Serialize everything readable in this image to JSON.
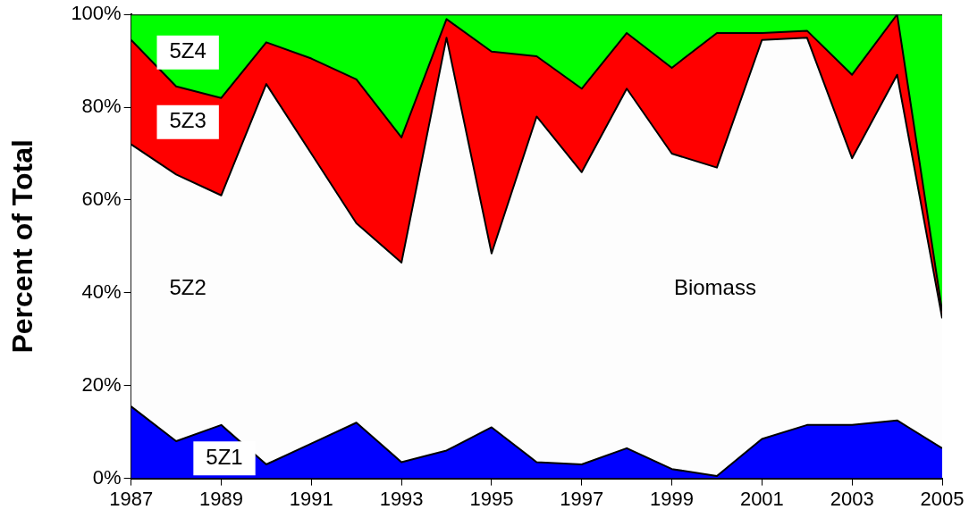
{
  "chart_data": {
    "type": "area",
    "stacked": true,
    "ylabel": "Percent of Total",
    "legend": false,
    "grid": false,
    "marker": "none",
    "x": [
      1987,
      1988,
      1989,
      1990,
      1991,
      1992,
      1993,
      1994,
      1995,
      1996,
      1997,
      1998,
      1999,
      2000,
      2001,
      2002,
      2003,
      2004,
      2005
    ],
    "xlim": [
      1987,
      2005
    ],
    "xticks": [
      1987,
      1989,
      1991,
      1993,
      1995,
      1997,
      1999,
      2001,
      2003,
      2005
    ],
    "ylim": [
      0,
      100
    ],
    "yticks": [
      {
        "value": 0,
        "label": "0%"
      },
      {
        "value": 20,
        "label": "20%"
      },
      {
        "value": 40,
        "label": "40%"
      },
      {
        "value": 60,
        "label": "60%"
      },
      {
        "value": 80,
        "label": "80%"
      },
      {
        "value": 100,
        "label": "100%"
      }
    ],
    "series": [
      {
        "name": "5Z1",
        "color": "#0000ff",
        "values": [
          15.5,
          8,
          11.5,
          3,
          7.5,
          12,
          3.5,
          6,
          11,
          3.5,
          3,
          6.5,
          2,
          0.5,
          8.5,
          11.5,
          11.5,
          12.5,
          6.5
        ]
      },
      {
        "name": "5Z2",
        "color": "#fdfdfd",
        "values": [
          56.5,
          57.5,
          49.5,
          82,
          62.5,
          43,
          43,
          89,
          37.5,
          74.5,
          63,
          77.5,
          68,
          66.5,
          86,
          83.5,
          57.5,
          74.5,
          28
        ]
      },
      {
        "name": "5Z3",
        "color": "#ff0000",
        "values": [
          22.5,
          19,
          21,
          9,
          20.5,
          31,
          27,
          4,
          43.5,
          13,
          18,
          12,
          18.5,
          29,
          1.5,
          1.5,
          18,
          13,
          1.5
        ]
      },
      {
        "name": "5Z4",
        "color": "#00ff00",
        "values": [
          5.5,
          15.5,
          18,
          6,
          9.5,
          14,
          26.5,
          1,
          8,
          9,
          16,
          4,
          11.5,
          4,
          4,
          3.5,
          13,
          0,
          64
        ]
      }
    ],
    "annotations": [
      "Biomass"
    ]
  }
}
